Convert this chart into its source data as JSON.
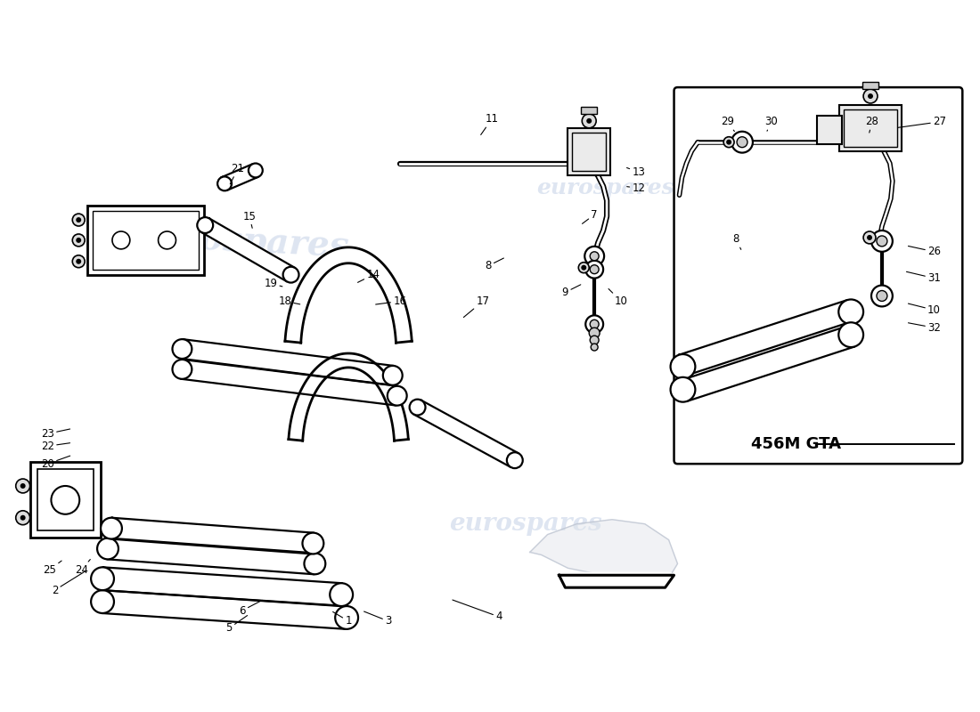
{
  "background_color": "#ffffff",
  "line_color": "#000000",
  "watermark_color": "#c8d4e8",
  "watermark_text": "eurospares",
  "gta_box_label": "456M GTA",
  "main_labels": [
    [
      1,
      390,
      100,
      370,
      112
    ],
    [
      2,
      58,
      135,
      95,
      158
    ],
    [
      3,
      435,
      100,
      405,
      112
    ],
    [
      4,
      560,
      105,
      505,
      125
    ],
    [
      5,
      255,
      92,
      278,
      108
    ],
    [
      6,
      270,
      112,
      295,
      125
    ],
    [
      7,
      668,
      560,
      652,
      548
    ],
    [
      8,
      548,
      502,
      568,
      512
    ],
    [
      9,
      635,
      472,
      655,
      482
    ],
    [
      10,
      698,
      462,
      682,
      478
    ],
    [
      11,
      552,
      668,
      538,
      648
    ],
    [
      12,
      718,
      590,
      702,
      592
    ],
    [
      13,
      718,
      608,
      702,
      614
    ],
    [
      14,
      418,
      492,
      398,
      482
    ],
    [
      15,
      278,
      558,
      282,
      542
    ],
    [
      16,
      448,
      462,
      418,
      458
    ],
    [
      17,
      542,
      462,
      518,
      442
    ],
    [
      18,
      318,
      462,
      338,
      458
    ],
    [
      19,
      302,
      482,
      318,
      478
    ],
    [
      20,
      50,
      278,
      78,
      288
    ],
    [
      21,
      265,
      612,
      255,
      592
    ],
    [
      22,
      50,
      298,
      78,
      302
    ],
    [
      23,
      50,
      312,
      78,
      318
    ],
    [
      24,
      88,
      158,
      100,
      172
    ],
    [
      25,
      52,
      158,
      68,
      170
    ]
  ],
  "gta_labels": [
    [
      29,
      818,
      665,
      828,
      652
    ],
    [
      30,
      868,
      665,
      862,
      652
    ],
    [
      28,
      982,
      665,
      978,
      650
    ],
    [
      27,
      1058,
      665,
      1008,
      658
    ],
    [
      8,
      828,
      532,
      835,
      518
    ],
    [
      26,
      1052,
      518,
      1020,
      525
    ],
    [
      31,
      1052,
      488,
      1018,
      496
    ],
    [
      10,
      1052,
      452,
      1020,
      460
    ],
    [
      32,
      1052,
      432,
      1020,
      438
    ]
  ]
}
